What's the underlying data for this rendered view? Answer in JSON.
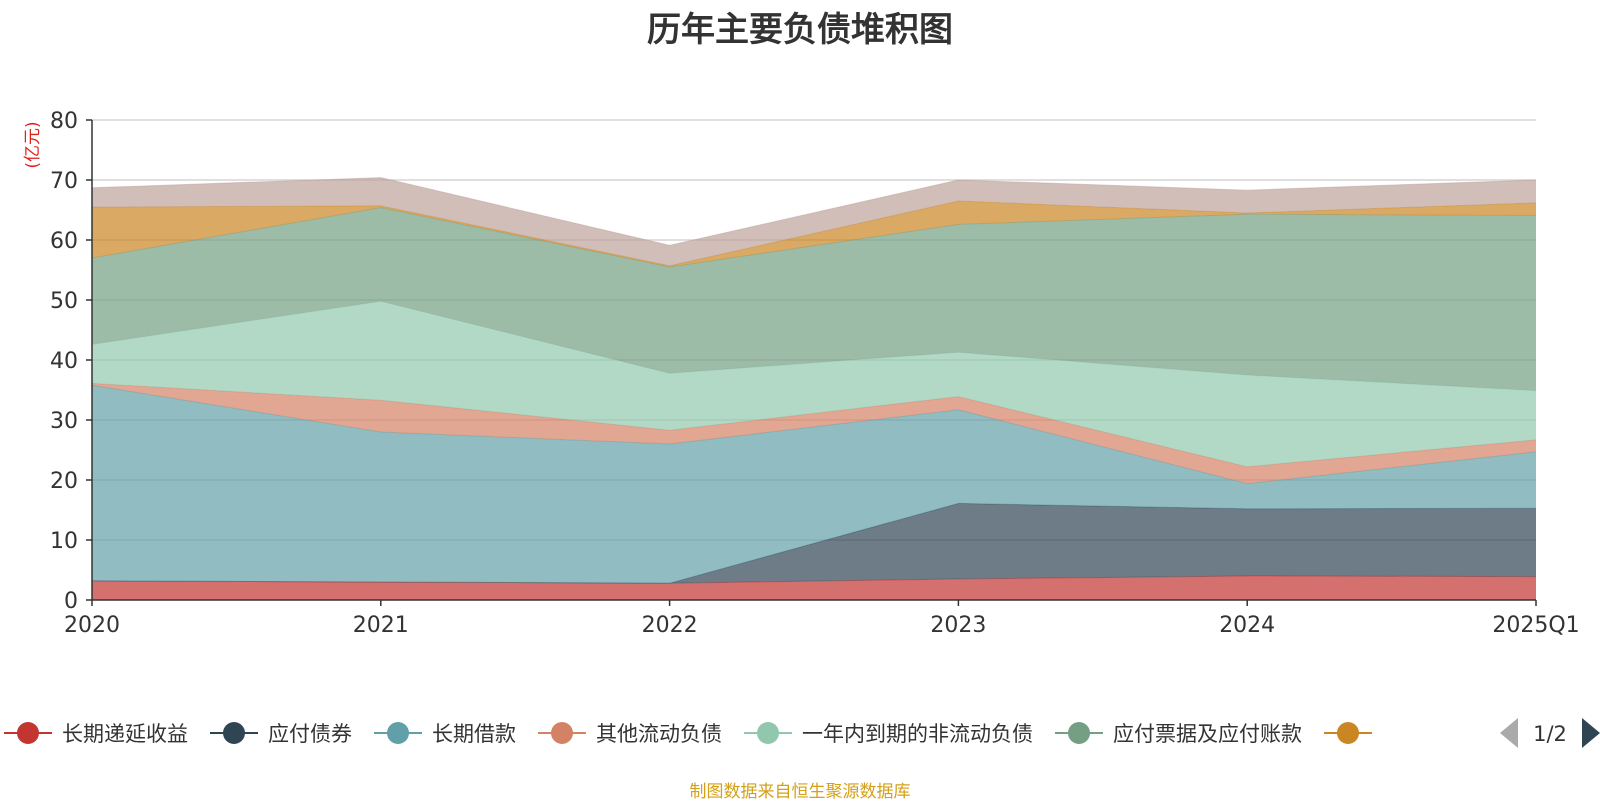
{
  "page": {
    "footer": "制图数据来自恒生聚源数据库"
  },
  "legend_page": "1/2",
  "chart_data": {
    "type": "area",
    "stacked": true,
    "title": "历年主要负债堆积图",
    "ylabel": "(亿元)",
    "xlabel": "",
    "ylim": [
      0,
      80
    ],
    "yticks": [
      0,
      10,
      20,
      30,
      40,
      50,
      60,
      70,
      80
    ],
    "grid": true,
    "legend_position": "bottom",
    "categories": [
      "2020",
      "2021",
      "2022",
      "2023",
      "2024",
      "2025Q1"
    ],
    "series": [
      {
        "name": "长期递延收益",
        "color": "#c23531",
        "values": [
          3.2,
          3.0,
          2.8,
          3.5,
          4.0,
          3.9
        ]
      },
      {
        "name": "应付债券",
        "color": "#2f4554",
        "values": [
          0,
          0,
          0,
          12.6,
          11.2,
          11.4
        ]
      },
      {
        "name": "长期借款",
        "color": "#61a0a8",
        "values": [
          32.6,
          25.0,
          23.2,
          15.6,
          4.2,
          9.4
        ]
      },
      {
        "name": "其他流动负债",
        "color": "#d48265",
        "values": [
          0.3,
          5.3,
          2.3,
          2.2,
          2.8,
          2.0
        ]
      },
      {
        "name": "一年内到期的非流动负债",
        "color": "#91c7ae",
        "values": [
          6.5,
          16.5,
          9.5,
          7.4,
          15.3,
          8.2
        ]
      },
      {
        "name": "应付票据及应付账款",
        "color": "#749f83",
        "values": [
          14.4,
          15.6,
          17.7,
          21.3,
          26.8,
          29.2
        ]
      },
      {
        "name": "",
        "color": "#ca8622",
        "values": [
          8.5,
          0.3,
          0.2,
          3.9,
          0.2,
          2.1
        ]
      },
      {
        "name": "",
        "color": "#bda29a",
        "values": [
          3.2,
          4.7,
          3.4,
          3.5,
          3.8,
          3.8
        ]
      }
    ]
  }
}
